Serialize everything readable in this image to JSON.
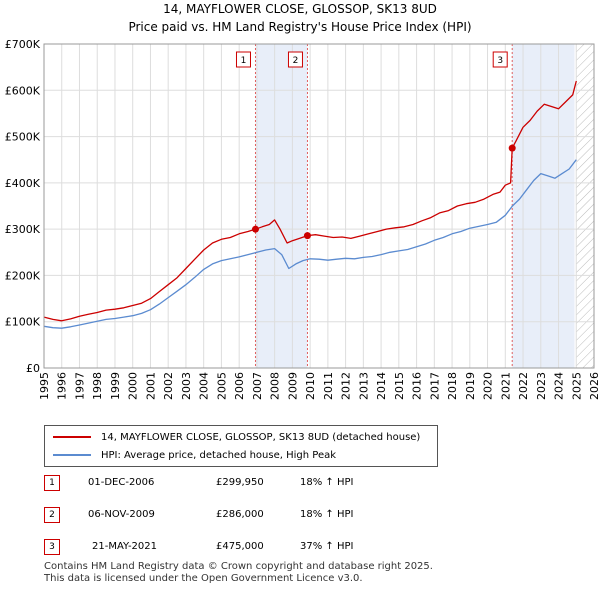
{
  "header": {
    "title": "14, MAYFLOWER CLOSE, GLOSSOP, SK13 8UD",
    "subtitle": "Price paid vs. HM Land Registry's House Price Index (HPI)"
  },
  "colors": {
    "price_line": "#cc0000",
    "hpi_line": "#5b8bd0",
    "shade": "#e8eef9",
    "marker_line": "#e06060",
    "grid": "#dddddd"
  },
  "chart_data": {
    "type": "line",
    "title": "Price paid vs. HM Land Registry's House Price Index (HPI)",
    "xlabel": "",
    "ylabel": "",
    "xlim": [
      1995,
      2026
    ],
    "ylim": [
      0,
      700000
    ],
    "x_ticks": [
      "1995",
      "1996",
      "1997",
      "1998",
      "1999",
      "2000",
      "2001",
      "2002",
      "2003",
      "2004",
      "2005",
      "2006",
      "2007",
      "2008",
      "2009",
      "2010",
      "2011",
      "2012",
      "2013",
      "2014",
      "2015",
      "2016",
      "2017",
      "2018",
      "2019",
      "2020",
      "2021",
      "2022",
      "2023",
      "2024",
      "2025",
      "2026"
    ],
    "y_ticks": [
      {
        "value": 0,
        "label": "£0"
      },
      {
        "value": 100000,
        "label": "£100K"
      },
      {
        "value": 200000,
        "label": "£200K"
      },
      {
        "value": 300000,
        "label": "£300K"
      },
      {
        "value": 400000,
        "label": "£400K"
      },
      {
        "value": 500000,
        "label": "£500K"
      },
      {
        "value": 600000,
        "label": "£600K"
      },
      {
        "value": 700000,
        "label": "£700K"
      }
    ],
    "grid": true,
    "shaded_ranges": [
      [
        2006.92,
        2009.85
      ],
      [
        2021.39,
        2024.9
      ]
    ],
    "hatched_from": 2025.0,
    "series": [
      {
        "name": "14, MAYFLOWER CLOSE, GLOSSOP, SK13 8UD (detached house)",
        "color": "#cc0000",
        "x": [
          1995,
          1995.5,
          1996,
          1996.5,
          1997,
          1997.5,
          1998,
          1998.5,
          1999,
          1999.5,
          2000,
          2000.5,
          2001,
          2001.5,
          2002,
          2002.5,
          2003,
          2003.5,
          2004,
          2004.5,
          2005,
          2005.5,
          2006,
          2006.5,
          2006.92,
          2007.3,
          2007.7,
          2008,
          2008.3,
          2008.7,
          2009,
          2009.4,
          2009.85,
          2010.3,
          2010.8,
          2011.3,
          2011.8,
          2012.3,
          2012.8,
          2013.3,
          2013.8,
          2014.3,
          2014.8,
          2015.3,
          2015.8,
          2016.3,
          2016.8,
          2017.3,
          2017.8,
          2018.3,
          2018.8,
          2019.3,
          2019.8,
          2020.3,
          2020.7,
          2021.0,
          2021.3,
          2021.39,
          2021.6,
          2022.0,
          2022.4,
          2022.8,
          2023.2,
          2023.6,
          2024.0,
          2024.4,
          2024.8,
          2025.0
        ],
        "values": [
          110000,
          105000,
          102000,
          106000,
          112000,
          116000,
          120000,
          125000,
          127000,
          130000,
          135000,
          140000,
          150000,
          165000,
          180000,
          195000,
          215000,
          235000,
          255000,
          270000,
          278000,
          282000,
          290000,
          295000,
          299950,
          305000,
          310000,
          320000,
          300000,
          270000,
          275000,
          280000,
          286000,
          288000,
          285000,
          282000,
          283000,
          280000,
          285000,
          290000,
          295000,
          300000,
          303000,
          305000,
          310000,
          318000,
          325000,
          335000,
          340000,
          350000,
          355000,
          358000,
          365000,
          375000,
          380000,
          395000,
          400000,
          475000,
          490000,
          520000,
          535000,
          555000,
          570000,
          565000,
          560000,
          575000,
          590000,
          620000
        ]
      },
      {
        "name": "HPI: Average price, detached house, High Peak",
        "color": "#5b8bd0",
        "x": [
          1995,
          1995.5,
          1996,
          1996.5,
          1997,
          1997.5,
          1998,
          1998.5,
          1999,
          1999.5,
          2000,
          2000.5,
          2001,
          2001.5,
          2002,
          2002.5,
          2003,
          2003.5,
          2004,
          2004.5,
          2005,
          2005.5,
          2006,
          2006.5,
          2007,
          2007.5,
          2008,
          2008.4,
          2008.8,
          2009.2,
          2009.6,
          2010,
          2010.5,
          2011,
          2011.5,
          2012,
          2012.5,
          2013,
          2013.5,
          2014,
          2014.5,
          2015,
          2015.5,
          2016,
          2016.5,
          2017,
          2017.5,
          2018,
          2018.5,
          2019,
          2019.5,
          2020,
          2020.5,
          2021,
          2021.4,
          2021.8,
          2022.2,
          2022.6,
          2023,
          2023.4,
          2023.8,
          2024.2,
          2024.6,
          2025.0
        ],
        "values": [
          90000,
          87000,
          86000,
          89000,
          93000,
          97000,
          101000,
          105000,
          107000,
          110000,
          113000,
          118000,
          126000,
          138000,
          152000,
          166000,
          180000,
          196000,
          213000,
          225000,
          232000,
          236000,
          240000,
          245000,
          250000,
          255000,
          258000,
          245000,
          215000,
          225000,
          232000,
          236000,
          235000,
          233000,
          235000,
          237000,
          236000,
          239000,
          241000,
          245000,
          250000,
          253000,
          256000,
          262000,
          268000,
          276000,
          282000,
          290000,
          295000,
          302000,
          306000,
          310000,
          315000,
          330000,
          350000,
          365000,
          385000,
          405000,
          420000,
          415000,
          410000,
          420000,
          430000,
          450000
        ]
      }
    ],
    "sale_markers": [
      {
        "id": "1",
        "x": 2006.92,
        "y": 299950
      },
      {
        "id": "2",
        "x": 2009.85,
        "y": 286000
      },
      {
        "id": "3",
        "x": 2021.39,
        "y": 475000
      }
    ]
  },
  "legend": {
    "items": [
      {
        "label": "14, MAYFLOWER CLOSE, GLOSSOP, SK13 8UD (detached house)"
      },
      {
        "label": "HPI: Average price, detached house, High Peak"
      }
    ]
  },
  "transactions": [
    {
      "num": "1",
      "date": "01-DEC-2006",
      "price": "£299,950",
      "hpi": "18% ↑ HPI"
    },
    {
      "num": "2",
      "date": "06-NOV-2009",
      "price": "£286,000",
      "hpi": "18% ↑ HPI"
    },
    {
      "num": "3",
      "date": "21-MAY-2021",
      "price": "£475,000",
      "hpi": "37% ↑ HPI"
    }
  ],
  "footer": {
    "line1": "Contains HM Land Registry data © Crown copyright and database right 2025.",
    "line2": "This data is licensed under the Open Government Licence v3.0."
  }
}
